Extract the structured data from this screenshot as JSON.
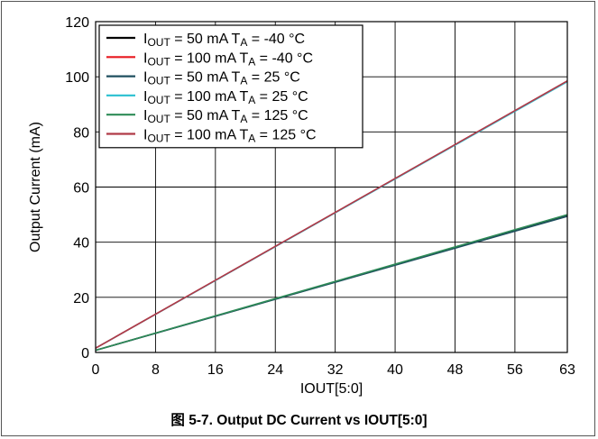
{
  "chart_data": {
    "type": "line",
    "title": "图 5-7. Output DC Current vs IOUT[5:0]",
    "xlabel": "IOUT[5:0]",
    "ylabel": "Output Current (mA)",
    "xlim": [
      0,
      63
    ],
    "ylim": [
      0,
      120
    ],
    "xticks": [
      0,
      8,
      16,
      24,
      32,
      40,
      48,
      56,
      63
    ],
    "yticks": [
      0,
      20,
      40,
      60,
      80,
      100,
      120
    ],
    "grid": true,
    "legend_position": "top-left",
    "series": [
      {
        "name": {
          "prefix": "I",
          "sub": "OUT",
          "mid": " = 50 mA T",
          "sub2": "A",
          "suffix": " = -40 °C"
        },
        "color": "#000000",
        "x": [
          0,
          63
        ],
        "y": [
          0.78,
          49.6
        ]
      },
      {
        "name": {
          "prefix": "I",
          "sub": "OUT",
          "mid": " = 100 mA T",
          "sub2": "A",
          "suffix": " = -40 °C"
        },
        "color": "#e8191f",
        "x": [
          0,
          63
        ],
        "y": [
          1.56,
          98.4
        ]
      },
      {
        "name": {
          "prefix": "I",
          "sub": "OUT",
          "mid": " = 50 mA T",
          "sub2": "A",
          "suffix": " = 25 °C"
        },
        "color": "#1f4f5f",
        "x": [
          0,
          63
        ],
        "y": [
          0.78,
          49.4
        ]
      },
      {
        "name": {
          "prefix": "I",
          "sub": "OUT",
          "mid": " = 100 mA T",
          "sub2": "A",
          "suffix": " = 25 °C"
        },
        "color": "#34c3d3",
        "x": [
          0,
          63
        ],
        "y": [
          1.56,
          98.2
        ]
      },
      {
        "name": {
          "prefix": "I",
          "sub": "OUT",
          "mid": " = 50 mA T",
          "sub2": "A",
          "suffix": " = 125 °C"
        },
        "color": "#2e8b57",
        "x": [
          0,
          63
        ],
        "y": [
          0.78,
          50.0
        ]
      },
      {
        "name": {
          "prefix": "I",
          "sub": "OUT",
          "mid": " = 100 mA T",
          "sub2": "A",
          "suffix": " = 125 °C"
        },
        "color": "#b03a48",
        "x": [
          0,
          63
        ],
        "y": [
          1.56,
          98.5
        ]
      }
    ]
  }
}
